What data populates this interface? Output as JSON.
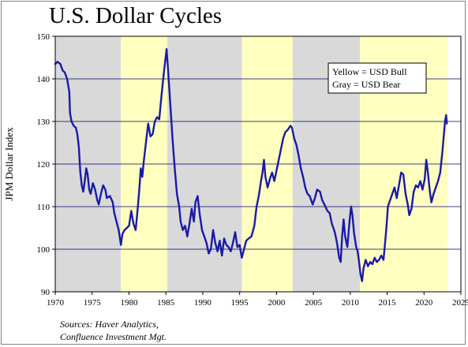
{
  "chart_data": {
    "type": "line",
    "title": "U.S. Dollar Cycles",
    "ylabel": "JPM Dollar Index",
    "xlabel": "",
    "xlim": [
      1970,
      2025
    ],
    "ylim": [
      90,
      150
    ],
    "x_ticks": [
      "1970",
      "1975",
      "1980",
      "1985",
      "1990",
      "1995",
      "2000",
      "2005",
      "2010",
      "2015",
      "2020",
      "2025"
    ],
    "y_ticks": [
      "90",
      "100",
      "110",
      "120",
      "130",
      "140",
      "150"
    ],
    "grid": "horizontal",
    "legend": {
      "position": "top-right",
      "entries": [
        "Yellow = USD Bull",
        "Gray = USD Bear"
      ]
    },
    "regimes": [
      {
        "type": "bear",
        "color": "#d9d9d9",
        "start": 1970,
        "end": 1978.9
      },
      {
        "type": "bull",
        "color": "#ffffc0",
        "start": 1978.9,
        "end": 1985.2
      },
      {
        "type": "bear",
        "color": "#d9d9d9",
        "start": 1985.2,
        "end": 1995.3
      },
      {
        "type": "bull",
        "color": "#ffffc0",
        "start": 1995.3,
        "end": 2002.2
      },
      {
        "type": "bear",
        "color": "#d9d9d9",
        "start": 2002.2,
        "end": 2011.3
      },
      {
        "type": "bull",
        "color": "#ffffc0",
        "start": 2011.3,
        "end": 2023.2
      }
    ],
    "line_color": "#1a1aa6",
    "series": [
      {
        "values": [
          [
            1970.0,
            143.5
          ],
          [
            1970.3,
            144.0
          ],
          [
            1970.7,
            143.5
          ],
          [
            1971.0,
            142.0
          ],
          [
            1971.3,
            141.5
          ],
          [
            1971.6,
            140.0
          ],
          [
            1971.9,
            137.0
          ],
          [
            1972.0,
            132.0
          ],
          [
            1972.2,
            130.0
          ],
          [
            1972.5,
            129.0
          ],
          [
            1972.8,
            128.5
          ],
          [
            1973.0,
            127.0
          ],
          [
            1973.2,
            124.0
          ],
          [
            1973.4,
            118.0
          ],
          [
            1973.6,
            115.0
          ],
          [
            1973.8,
            113.5
          ],
          [
            1974.0,
            116.0
          ],
          [
            1974.2,
            119.0
          ],
          [
            1974.4,
            117.5
          ],
          [
            1974.6,
            114.0
          ],
          [
            1974.8,
            113.0
          ],
          [
            1975.1,
            115.5
          ],
          [
            1975.4,
            114.0
          ],
          [
            1975.7,
            111.5
          ],
          [
            1975.9,
            110.5
          ],
          [
            1976.2,
            113.0
          ],
          [
            1976.5,
            115.0
          ],
          [
            1976.8,
            114.0
          ],
          [
            1977.0,
            112.0
          ],
          [
            1977.4,
            112.5
          ],
          [
            1977.8,
            111.0
          ],
          [
            1978.0,
            108.5
          ],
          [
            1978.3,
            106.5
          ],
          [
            1978.6,
            104.5
          ],
          [
            1978.9,
            101.0
          ],
          [
            1979.1,
            103.5
          ],
          [
            1979.4,
            104.5
          ],
          [
            1979.7,
            105.0
          ],
          [
            1980.0,
            105.5
          ],
          [
            1980.3,
            109.0
          ],
          [
            1980.6,
            106.0
          ],
          [
            1980.9,
            104.5
          ],
          [
            1981.2,
            110.0
          ],
          [
            1981.4,
            114.0
          ],
          [
            1981.6,
            119.0
          ],
          [
            1981.8,
            117.0
          ],
          [
            1982.0,
            120.5
          ],
          [
            1982.3,
            125.0
          ],
          [
            1982.6,
            129.5
          ],
          [
            1982.9,
            126.5
          ],
          [
            1983.2,
            127.0
          ],
          [
            1983.5,
            130.0
          ],
          [
            1983.8,
            131.0
          ],
          [
            1984.1,
            130.5
          ],
          [
            1984.4,
            136.0
          ],
          [
            1984.7,
            141.0
          ],
          [
            1984.9,
            144.0
          ],
          [
            1985.1,
            147.0
          ],
          [
            1985.3,
            142.0
          ],
          [
            1985.6,
            134.0
          ],
          [
            1985.9,
            126.0
          ],
          [
            1986.2,
            119.0
          ],
          [
            1986.5,
            113.0
          ],
          [
            1986.8,
            110.0
          ],
          [
            1987.0,
            106.5
          ],
          [
            1987.3,
            104.5
          ],
          [
            1987.6,
            105.5
          ],
          [
            1987.9,
            103.0
          ],
          [
            1988.2,
            106.0
          ],
          [
            1988.5,
            109.5
          ],
          [
            1988.8,
            106.5
          ],
          [
            1989.0,
            111.0
          ],
          [
            1989.3,
            112.5
          ],
          [
            1989.6,
            108.0
          ],
          [
            1989.9,
            104.5
          ],
          [
            1990.2,
            103.0
          ],
          [
            1990.5,
            101.5
          ],
          [
            1990.8,
            99.0
          ],
          [
            1991.1,
            100.0
          ],
          [
            1991.4,
            104.5
          ],
          [
            1991.7,
            101.5
          ],
          [
            1992.0,
            99.5
          ],
          [
            1992.3,
            102.0
          ],
          [
            1992.6,
            98.5
          ],
          [
            1992.9,
            102.5
          ],
          [
            1993.2,
            101.0
          ],
          [
            1993.5,
            100.5
          ],
          [
            1993.8,
            99.5
          ],
          [
            1994.1,
            101.5
          ],
          [
            1994.4,
            104.0
          ],
          [
            1994.7,
            100.5
          ],
          [
            1995.0,
            101.0
          ],
          [
            1995.3,
            98.0
          ],
          [
            1995.6,
            100.0
          ],
          [
            1995.9,
            102.0
          ],
          [
            1996.2,
            102.5
          ],
          [
            1996.6,
            103.0
          ],
          [
            1997.0,
            105.5
          ],
          [
            1997.3,
            110.0
          ],
          [
            1997.6,
            112.5
          ],
          [
            1997.9,
            116.0
          ],
          [
            1998.1,
            118.0
          ],
          [
            1998.3,
            121.0
          ],
          [
            1998.5,
            117.0
          ],
          [
            1998.8,
            114.5
          ],
          [
            1999.1,
            116.5
          ],
          [
            1999.4,
            118.0
          ],
          [
            1999.7,
            116.0
          ],
          [
            2000.0,
            118.5
          ],
          [
            2000.3,
            121.0
          ],
          [
            2000.6,
            123.5
          ],
          [
            2000.9,
            126.0
          ],
          [
            2001.2,
            127.5
          ],
          [
            2001.5,
            128.0
          ],
          [
            2001.9,
            129.0
          ],
          [
            2002.1,
            128.5
          ],
          [
            2002.4,
            126.0
          ],
          [
            2002.7,
            124.5
          ],
          [
            2003.0,
            122.0
          ],
          [
            2003.3,
            119.0
          ],
          [
            2003.6,
            117.0
          ],
          [
            2003.9,
            114.5
          ],
          [
            2004.2,
            113.0
          ],
          [
            2004.5,
            112.5
          ],
          [
            2004.9,
            110.5
          ],
          [
            2005.2,
            112.0
          ],
          [
            2005.5,
            114.0
          ],
          [
            2005.9,
            113.5
          ],
          [
            2006.2,
            111.5
          ],
          [
            2006.5,
            110.5
          ],
          [
            2006.9,
            109.0
          ],
          [
            2007.2,
            108.5
          ],
          [
            2007.5,
            106.0
          ],
          [
            2007.9,
            104.0
          ],
          [
            2008.2,
            101.5
          ],
          [
            2008.5,
            98.0
          ],
          [
            2008.7,
            97.0
          ],
          [
            2008.9,
            103.0
          ],
          [
            2009.1,
            107.0
          ],
          [
            2009.3,
            103.0
          ],
          [
            2009.6,
            100.5
          ],
          [
            2009.9,
            106.5
          ],
          [
            2010.1,
            110.0
          ],
          [
            2010.3,
            108.0
          ],
          [
            2010.5,
            104.0
          ],
          [
            2010.8,
            100.5
          ],
          [
            2011.0,
            99.5
          ],
          [
            2011.2,
            97.0
          ],
          [
            2011.4,
            94.0
          ],
          [
            2011.6,
            92.5
          ],
          [
            2011.8,
            95.5
          ],
          [
            2012.1,
            97.5
          ],
          [
            2012.4,
            96.0
          ],
          [
            2012.7,
            97.0
          ],
          [
            2013.0,
            96.5
          ],
          [
            2013.3,
            98.0
          ],
          [
            2013.6,
            97.0
          ],
          [
            2013.9,
            97.5
          ],
          [
            2014.2,
            98.5
          ],
          [
            2014.5,
            97.5
          ],
          [
            2014.7,
            101.0
          ],
          [
            2014.9,
            105.0
          ],
          [
            2015.1,
            110.0
          ],
          [
            2015.4,
            111.5
          ],
          [
            2015.7,
            113.0
          ],
          [
            2016.0,
            114.5
          ],
          [
            2016.3,
            112.0
          ],
          [
            2016.6,
            115.0
          ],
          [
            2016.9,
            118.0
          ],
          [
            2017.2,
            117.5
          ],
          [
            2017.5,
            113.0
          ],
          [
            2017.8,
            110.5
          ],
          [
            2018.0,
            108.0
          ],
          [
            2018.3,
            109.5
          ],
          [
            2018.6,
            113.5
          ],
          [
            2018.9,
            115.0
          ],
          [
            2019.2,
            114.5
          ],
          [
            2019.5,
            116.0
          ],
          [
            2019.8,
            114.0
          ],
          [
            2020.1,
            116.5
          ],
          [
            2020.3,
            121.0
          ],
          [
            2020.5,
            118.5
          ],
          [
            2020.8,
            113.5
          ],
          [
            2021.0,
            111.0
          ],
          [
            2021.3,
            113.0
          ],
          [
            2021.6,
            114.5
          ],
          [
            2021.9,
            116.0
          ],
          [
            2022.2,
            118.0
          ],
          [
            2022.5,
            123.0
          ],
          [
            2022.7,
            127.0
          ],
          [
            2022.85,
            130.0
          ],
          [
            2023.0,
            131.5
          ],
          [
            2023.1,
            129.5
          ]
        ]
      }
    ]
  },
  "sources": {
    "line1": "Sources:  Haver Analytics,",
    "line2": "Confluence Investment Mgt."
  }
}
